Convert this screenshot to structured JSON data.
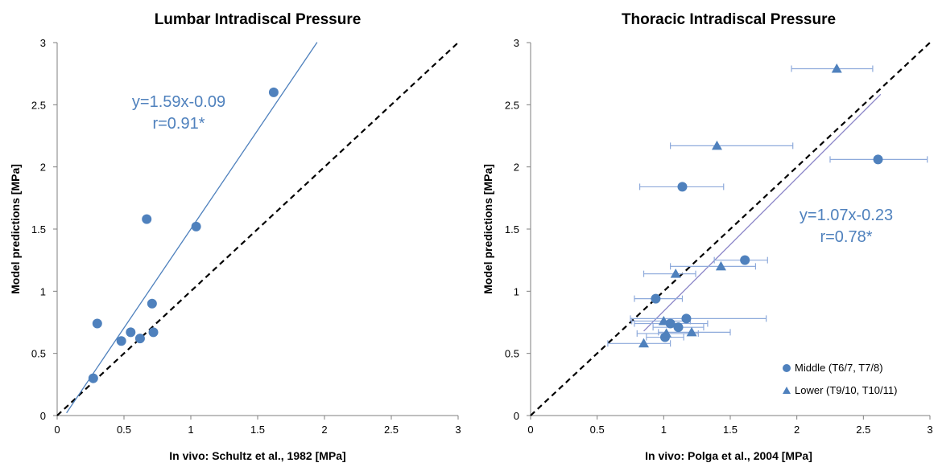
{
  "chart_data": [
    {
      "type": "scatter",
      "title": "Lumbar Intradiscal Pressure",
      "xlabel": "In vivo: Schultz et al., 1982 [MPa]",
      "ylabel": "Model predictions [MPa]",
      "xlim": [
        0,
        3
      ],
      "ylim": [
        0,
        3
      ],
      "xticks": [
        "0",
        "0.5",
        "1",
        "1.5",
        "2",
        "2.5",
        "3"
      ],
      "yticks": [
        "0",
        "0.5",
        "1",
        "1.5",
        "2",
        "2.5",
        "3"
      ],
      "grid": false,
      "marker_color": "#4f81bd",
      "series": [
        {
          "marker": "circle",
          "points": [
            {
              "x": 0.27,
              "y": 0.3
            },
            {
              "x": 0.3,
              "y": 0.74
            },
            {
              "x": 0.48,
              "y": 0.6
            },
            {
              "x": 0.55,
              "y": 0.67
            },
            {
              "x": 0.62,
              "y": 0.62
            },
            {
              "x": 0.67,
              "y": 1.58
            },
            {
              "x": 0.71,
              "y": 0.9
            },
            {
              "x": 0.72,
              "y": 0.67
            },
            {
              "x": 1.04,
              "y": 1.52
            },
            {
              "x": 1.62,
              "y": 2.6
            }
          ]
        }
      ],
      "regression": {
        "slope": 1.59,
        "intercept": -0.09,
        "x_start": 0.07,
        "x_end": 1.945,
        "color": "#4f81bd"
      },
      "identity_line": {
        "from": [
          0,
          0
        ],
        "to": [
          3,
          3
        ],
        "style": "dashed",
        "color": "#000000"
      },
      "annotation": [
        "y=1.59x-0.09",
        "r=0.91*"
      ]
    },
    {
      "type": "scatter",
      "title": "Thoracic Intradiscal Pressure",
      "xlabel": "In vivo: Polga et al., 2004 [MPa]",
      "ylabel": "Model predictions [MPa]",
      "xlim": [
        0,
        3
      ],
      "ylim": [
        0,
        3
      ],
      "xticks": [
        "0",
        "0.5",
        "1",
        "1.5",
        "2",
        "2.5",
        "3"
      ],
      "yticks": [
        "0",
        "0.5",
        "1",
        "1.5",
        "2",
        "2.5",
        "3"
      ],
      "grid": false,
      "marker_color": "#4f81bd",
      "legend_position": "bottom-right",
      "series": [
        {
          "name": "Middle (T6/7, T7/8)",
          "marker": "circle",
          "points": [
            {
              "x": 0.94,
              "y": 0.94,
              "xerr": [
                0.78,
                1.14
              ]
            },
            {
              "x": 1.01,
              "y": 0.63,
              "xerr": [
                0.87,
                1.15
              ]
            },
            {
              "x": 1.05,
              "y": 0.74,
              "xerr": [
                0.78,
                1.33
              ]
            },
            {
              "x": 1.11,
              "y": 0.71,
              "xerr": [
                0.92,
                1.3
              ]
            },
            {
              "x": 1.14,
              "y": 1.84,
              "xerr": [
                0.82,
                1.45
              ]
            },
            {
              "x": 1.17,
              "y": 0.78,
              "xerr": [
                0.75,
                1.77
              ]
            },
            {
              "x": 1.61,
              "y": 1.25,
              "xerr": [
                1.38,
                1.78
              ]
            },
            {
              "x": 2.61,
              "y": 2.06,
              "xerr": [
                2.25,
                2.98
              ]
            }
          ]
        },
        {
          "name": "Lower (T9/10, T10/11)",
          "marker": "triangle",
          "points": [
            {
              "x": 0.85,
              "y": 0.58,
              "xerr": [
                0.58,
                1.05
              ]
            },
            {
              "x": 1.0,
              "y": 0.76,
              "xerr": [
                0.76,
                1.2
              ]
            },
            {
              "x": 1.02,
              "y": 0.66,
              "xerr": [
                0.8,
                1.26
              ]
            },
            {
              "x": 1.09,
              "y": 1.14,
              "xerr": [
                0.85,
                1.24
              ]
            },
            {
              "x": 1.21,
              "y": 0.67,
              "xerr": [
                0.96,
                1.5
              ]
            },
            {
              "x": 1.4,
              "y": 2.17,
              "xerr": [
                1.05,
                1.97
              ]
            },
            {
              "x": 1.43,
              "y": 1.2,
              "xerr": [
                1.05,
                1.69
              ]
            },
            {
              "x": 2.3,
              "y": 2.79,
              "xerr": [
                1.96,
                2.57
              ]
            }
          ]
        }
      ],
      "regression": {
        "slope": 1.07,
        "intercept": -0.23,
        "x_start": 0.85,
        "x_end": 2.63,
        "color": "#8c86c8"
      },
      "identity_line": {
        "from": [
          0,
          0
        ],
        "to": [
          3,
          3
        ],
        "style": "dashed",
        "color": "#000000"
      },
      "annotation": [
        "y=1.07x-0.23",
        "r=0.78*"
      ]
    }
  ]
}
